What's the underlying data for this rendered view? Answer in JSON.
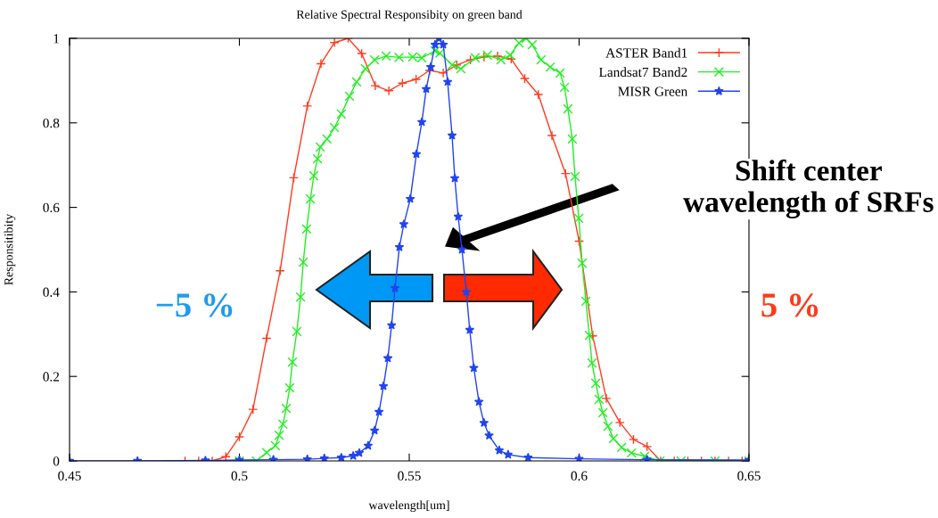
{
  "chart_data": {
    "type": "line",
    "title": "Relative Spectral Responsibity on green band",
    "xlabel": "wavelength[um]",
    "ylabel": "Responsitibity",
    "xlim": [
      0.45,
      0.65
    ],
    "xticks": [
      0.45,
      0.5,
      0.55,
      0.6,
      0.65
    ],
    "ylim": [
      0,
      1
    ],
    "yticks": [
      0,
      0.2,
      0.4,
      0.6,
      0.8,
      1
    ],
    "grid": false,
    "legend": "top right",
    "annotations": [
      "Shift center\nwavelength of SRFs",
      "−5 %",
      "5 %"
    ],
    "series": [
      {
        "name": "ASTER Band1",
        "color": "#ff3b1f",
        "marker": "plus",
        "x": [
          0.484,
          0.488,
          0.492,
          0.496,
          0.5,
          0.504,
          0.508,
          0.512,
          0.516,
          0.52,
          0.524,
          0.528,
          0.532,
          0.536,
          0.54,
          0.544,
          0.548,
          0.552,
          0.556,
          0.56,
          0.564,
          0.568,
          0.572,
          0.576,
          0.58,
          0.584,
          0.588,
          0.592,
          0.596,
          0.6,
          0.604,
          0.608,
          0.612,
          0.616,
          0.62,
          0.624,
          0.628,
          0.632,
          0.636,
          0.64,
          0.644,
          0.648
        ],
        "values": [
          0,
          0,
          0,
          0.01,
          0.057,
          0.122,
          0.29,
          0.45,
          0.67,
          0.84,
          0.94,
          0.99,
          1.0,
          0.964,
          0.888,
          0.876,
          0.894,
          0.903,
          0.924,
          0.918,
          0.937,
          0.949,
          0.956,
          0.958,
          0.951,
          0.905,
          0.867,
          0.77,
          0.68,
          0.52,
          0.296,
          0.148,
          0.091,
          0.051,
          0.034,
          0,
          0,
          0,
          0,
          0,
          0,
          0
        ]
      },
      {
        "name": "Landsat7 Band2",
        "color": "#22ee22",
        "marker": "cross",
        "x": [
          0.5,
          0.505,
          0.508,
          0.5106,
          0.5117,
          0.5128,
          0.5138,
          0.5148,
          0.5156,
          0.5169,
          0.518,
          0.5188,
          0.5198,
          0.5209,
          0.5219,
          0.523,
          0.5238,
          0.5258,
          0.528,
          0.53,
          0.5324,
          0.5345,
          0.5371,
          0.5398,
          0.5432,
          0.547,
          0.551,
          0.5537,
          0.5576,
          0.559,
          0.5626,
          0.5652,
          0.5694,
          0.573,
          0.577,
          0.5797,
          0.5823,
          0.5844,
          0.5862,
          0.5888,
          0.5915,
          0.5944,
          0.5957,
          0.5967,
          0.598,
          0.5988,
          0.5999,
          0.6009,
          0.602,
          0.603,
          0.6038,
          0.6049,
          0.6059,
          0.607,
          0.6085,
          0.6101,
          0.6125,
          0.6154,
          0.6193,
          0.6238,
          0.63,
          0.64,
          0.65
        ],
        "values": [
          0,
          0,
          0.02,
          0.036,
          0.061,
          0.087,
          0.124,
          0.173,
          0.234,
          0.306,
          0.388,
          0.47,
          0.549,
          0.62,
          0.675,
          0.715,
          0.743,
          0.762,
          0.789,
          0.821,
          0.863,
          0.897,
          0.928,
          0.949,
          0.958,
          0.955,
          0.956,
          0.954,
          0.97,
          0.965,
          0.937,
          0.928,
          0.954,
          0.96,
          0.949,
          0.96,
          0.989,
          1.0,
          0.985,
          0.949,
          0.932,
          0.918,
          0.884,
          0.833,
          0.762,
          0.673,
          0.574,
          0.468,
          0.378,
          0.297,
          0.232,
          0.184,
          0.146,
          0.114,
          0.082,
          0.053,
          0.032,
          0.019,
          0.011,
          0,
          0,
          0,
          0
        ]
      },
      {
        "name": "MISR Green",
        "color": "#2244ee",
        "marker": "star",
        "x": [
          0.45,
          0.47,
          0.49,
          0.5,
          0.51,
          0.52,
          0.525,
          0.53,
          0.5335,
          0.5353,
          0.5379,
          0.5398,
          0.5411,
          0.5424,
          0.5437,
          0.5448,
          0.5458,
          0.5471,
          0.5484,
          0.5503,
          0.5521,
          0.5537,
          0.555,
          0.5563,
          0.5576,
          0.5587,
          0.56,
          0.5613,
          0.5626,
          0.5634,
          0.5644,
          0.5655,
          0.5668,
          0.5678,
          0.569,
          0.5705,
          0.572,
          0.5735,
          0.5765,
          0.5791,
          0.585,
          0.6,
          0.62,
          0.65
        ],
        "values": [
          0,
          0,
          0.001,
          0.002,
          0.003,
          0.004,
          0.006,
          0.008,
          0.012,
          0.019,
          0.036,
          0.072,
          0.116,
          0.177,
          0.243,
          0.321,
          0.409,
          0.506,
          0.56,
          0.62,
          0.726,
          0.802,
          0.88,
          0.932,
          0.985,
          1.0,
          0.985,
          0.897,
          0.77,
          0.669,
          0.578,
          0.5,
          0.4,
          0.31,
          0.22,
          0.14,
          0.09,
          0.06,
          0.025,
          0.015,
          0.008,
          0.005,
          0.003,
          0.002
        ]
      }
    ]
  }
}
